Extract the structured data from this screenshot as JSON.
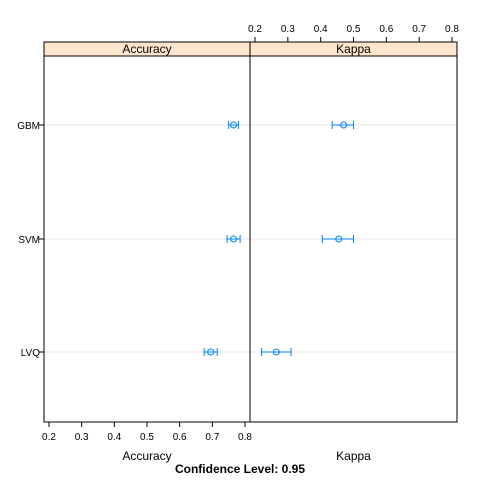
{
  "chart_data": {
    "type": "dotplot-with-error-bars",
    "footer": "Confidence Level: 0.95",
    "categories": [
      "GBM",
      "SVM",
      "LVQ"
    ],
    "panels": [
      {
        "title": "Accuracy",
        "xlabel": "Accuracy",
        "xlim": [
          0.2,
          0.8
        ],
        "ticks": [
          "0.2",
          "0.3",
          "0.4",
          "0.5",
          "0.6",
          "0.7",
          "0.8"
        ],
        "tick_side": "bottom",
        "estimates": [
          0.765,
          0.765,
          0.695
        ],
        "lower": [
          0.75,
          0.745,
          0.675
        ],
        "upper": [
          0.78,
          0.785,
          0.715
        ]
      },
      {
        "title": "Kappa",
        "xlabel": "Kappa",
        "xlim": [
          0.2,
          0.8
        ],
        "ticks": [
          "0.2",
          "0.3",
          "0.4",
          "0.5",
          "0.6",
          "0.7",
          "0.8"
        ],
        "tick_side": "top",
        "estimates": [
          0.47,
          0.455,
          0.265
        ],
        "lower": [
          0.435,
          0.405,
          0.22
        ],
        "upper": [
          0.5,
          0.5,
          0.31
        ]
      }
    ],
    "colors": {
      "strip": "#ffe5cc",
      "point": "#0080ff",
      "gridline": "#e6e6e6",
      "frame": "#000000"
    },
    "grid": true
  }
}
